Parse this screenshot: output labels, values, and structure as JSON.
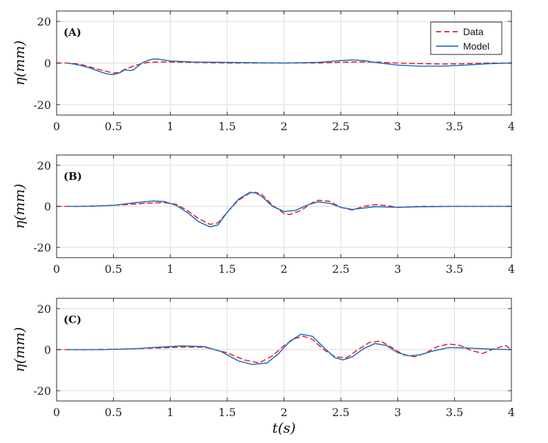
{
  "chart_data": [
    {
      "type": "line",
      "panel_label": "(A)",
      "ylabel": "η(mm)",
      "xlim": [
        0,
        4
      ],
      "ylim": [
        -25,
        25
      ],
      "xticks": [
        0,
        0.5,
        1,
        1.5,
        2,
        2.5,
        3,
        3.5,
        4
      ],
      "xtick_labels": [
        "0",
        "0.5",
        "1",
        "1.5",
        "2",
        "2.5",
        "3",
        "3.5",
        "4"
      ],
      "yticks": [
        -20,
        0,
        20
      ],
      "ytick_labels": [
        "-20",
        "0",
        "20"
      ],
      "grid": true,
      "legend": {
        "placement": "top-right",
        "entries": [
          "Data",
          "Model"
        ]
      },
      "series": [
        {
          "name": "Data",
          "color": "#e8141b",
          "style": "dashed",
          "x": [
            0.0,
            0.1,
            0.2,
            0.3,
            0.4,
            0.5,
            0.55,
            0.6,
            0.7,
            0.8,
            0.9,
            1.0,
            1.2,
            1.5,
            2.0,
            2.3,
            2.6,
            2.8,
            3.0,
            3.2,
            3.4,
            3.6,
            3.8,
            4.0
          ],
          "y": [
            0,
            0,
            -0.5,
            -2,
            -3.5,
            -4.8,
            -4.5,
            -3,
            -1,
            0.3,
            0.5,
            0.5,
            0.3,
            0,
            0,
            0,
            0.5,
            0.5,
            0,
            -0.3,
            -0.5,
            -0.3,
            0,
            0
          ]
        },
        {
          "name": "Model",
          "color": "#1f6fbf",
          "style": "solid",
          "x": [
            0.1,
            0.2,
            0.3,
            0.4,
            0.45,
            0.5,
            0.55,
            0.6,
            0.65,
            0.68,
            0.7,
            0.75,
            0.8,
            0.85,
            0.9,
            1.0,
            1.2,
            1.5,
            2.0,
            2.3,
            2.5,
            2.6,
            2.7,
            2.8,
            3.0,
            3.2,
            3.4,
            3.6,
            3.8,
            4.0
          ],
          "y": [
            0,
            -1,
            -2.5,
            -4.5,
            -5.3,
            -5.5,
            -4.8,
            -3.3,
            -3.6,
            -3.2,
            -2.2,
            0,
            1.2,
            2,
            1.8,
            1,
            0.5,
            0.3,
            0,
            0.3,
            1.2,
            1.5,
            1.2,
            0.3,
            -1,
            -1.5,
            -1.5,
            -1,
            -0.3,
            0
          ]
        }
      ]
    },
    {
      "type": "line",
      "panel_label": "(B)",
      "ylabel": "η(mm)",
      "xlim": [
        0,
        4
      ],
      "ylim": [
        -25,
        25
      ],
      "xticks": [
        0,
        0.5,
        1,
        1.5,
        2,
        2.5,
        3,
        3.5,
        4
      ],
      "xtick_labels": [
        "0",
        "0.5",
        "1",
        "1.5",
        "2",
        "2.5",
        "3",
        "3.5",
        "4"
      ],
      "yticks": [
        -20,
        0,
        20
      ],
      "ytick_labels": [
        "-20",
        "0",
        "20"
      ],
      "grid": true,
      "series": [
        {
          "name": "Data",
          "color": "#e8141b",
          "style": "dashed",
          "x": [
            0.0,
            0.2,
            0.4,
            0.6,
            0.8,
            0.95,
            1.05,
            1.15,
            1.25,
            1.35,
            1.42,
            1.5,
            1.6,
            1.7,
            1.75,
            1.8,
            1.9,
            2.0,
            2.05,
            2.15,
            2.25,
            2.3,
            2.4,
            2.5,
            2.6,
            2.7,
            2.8,
            2.9,
            3.0,
            3.2,
            3.5,
            3.8,
            4.0
          ],
          "y": [
            0,
            0,
            0.3,
            0.8,
            1.5,
            1.8,
            1,
            -2,
            -6,
            -8.8,
            -8,
            -3,
            3,
            6.5,
            6.8,
            6,
            0.5,
            -3.5,
            -4,
            -2,
            1.8,
            3,
            2.5,
            -0.5,
            -1.8,
            0,
            0.8,
            0.4,
            -0.5,
            0,
            0,
            0,
            0
          ]
        },
        {
          "name": "Model",
          "color": "#1f6fbf",
          "style": "solid",
          "x": [
            0.1,
            0.3,
            0.5,
            0.7,
            0.85,
            0.95,
            1.05,
            1.15,
            1.25,
            1.35,
            1.42,
            1.5,
            1.6,
            1.7,
            1.75,
            1.8,
            1.9,
            2.0,
            2.1,
            2.2,
            2.3,
            2.4,
            2.5,
            2.6,
            2.7,
            2.8,
            3.0,
            3.2,
            3.5,
            3.8,
            4.0
          ],
          "y": [
            0,
            0,
            0.5,
            1.8,
            2.6,
            2.3,
            0.5,
            -3,
            -7.5,
            -10,
            -9,
            -3,
            3.5,
            6.8,
            6.5,
            5,
            0,
            -2.5,
            -2,
            0.5,
            2.2,
            1.5,
            -0.5,
            -1.5,
            -0.8,
            -0.2,
            -0.5,
            -0.2,
            0,
            0,
            0
          ]
        }
      ]
    },
    {
      "type": "line",
      "panel_label": "(C)",
      "ylabel": "η(mm)",
      "xlabel": "t(s)",
      "xlim": [
        0,
        4
      ],
      "ylim": [
        -25,
        25
      ],
      "xticks": [
        0,
        0.5,
        1,
        1.5,
        2,
        2.5,
        3,
        3.5,
        4
      ],
      "xtick_labels": [
        "0",
        "0.5",
        "1",
        "1.5",
        "2",
        "2.5",
        "3",
        "3.5",
        "4"
      ],
      "yticks": [
        -20,
        0,
        20
      ],
      "ytick_labels": [
        "-20",
        "0",
        "20"
      ],
      "grid": true,
      "series": [
        {
          "name": "Data",
          "color": "#e8141b",
          "style": "dashed",
          "x": [
            0.0,
            0.3,
            0.6,
            0.9,
            1.1,
            1.3,
            1.5,
            1.65,
            1.78,
            1.9,
            2.0,
            2.1,
            2.17,
            2.25,
            2.35,
            2.45,
            2.55,
            2.65,
            2.75,
            2.85,
            2.95,
            3.05,
            3.15,
            3.25,
            3.35,
            3.45,
            3.55,
            3.65,
            3.75,
            3.85,
            3.95,
            4.0
          ],
          "y": [
            0,
            0,
            0.3,
            0.8,
            1.2,
            1.2,
            -1.5,
            -5,
            -6.5,
            -3,
            2,
            5.5,
            6.5,
            5,
            0,
            -3.5,
            -4,
            0,
            3.5,
            4.2,
            1,
            -2.5,
            -3.5,
            -1.5,
            1.5,
            2.8,
            2,
            -0.5,
            -1.8,
            0.5,
            2,
            0
          ]
        },
        {
          "name": "Model",
          "color": "#1f6fbf",
          "style": "solid",
          "x": [
            0.1,
            0.4,
            0.7,
            0.9,
            1.1,
            1.3,
            1.45,
            1.6,
            1.72,
            1.85,
            1.95,
            2.05,
            2.15,
            2.25,
            2.35,
            2.45,
            2.52,
            2.6,
            2.7,
            2.8,
            2.9,
            3.0,
            3.1,
            3.2,
            3.3,
            3.45,
            3.6,
            3.8,
            4.0
          ],
          "y": [
            0,
            0,
            0.5,
            1.2,
            1.8,
            1.5,
            -1,
            -5.5,
            -7.2,
            -6.5,
            -2,
            4,
            7.5,
            6.5,
            1,
            -4,
            -5,
            -3.5,
            0.5,
            3,
            2,
            -1.5,
            -3,
            -2.5,
            -0.8,
            1,
            0.8,
            0.3,
            0
          ]
        }
      ]
    }
  ]
}
